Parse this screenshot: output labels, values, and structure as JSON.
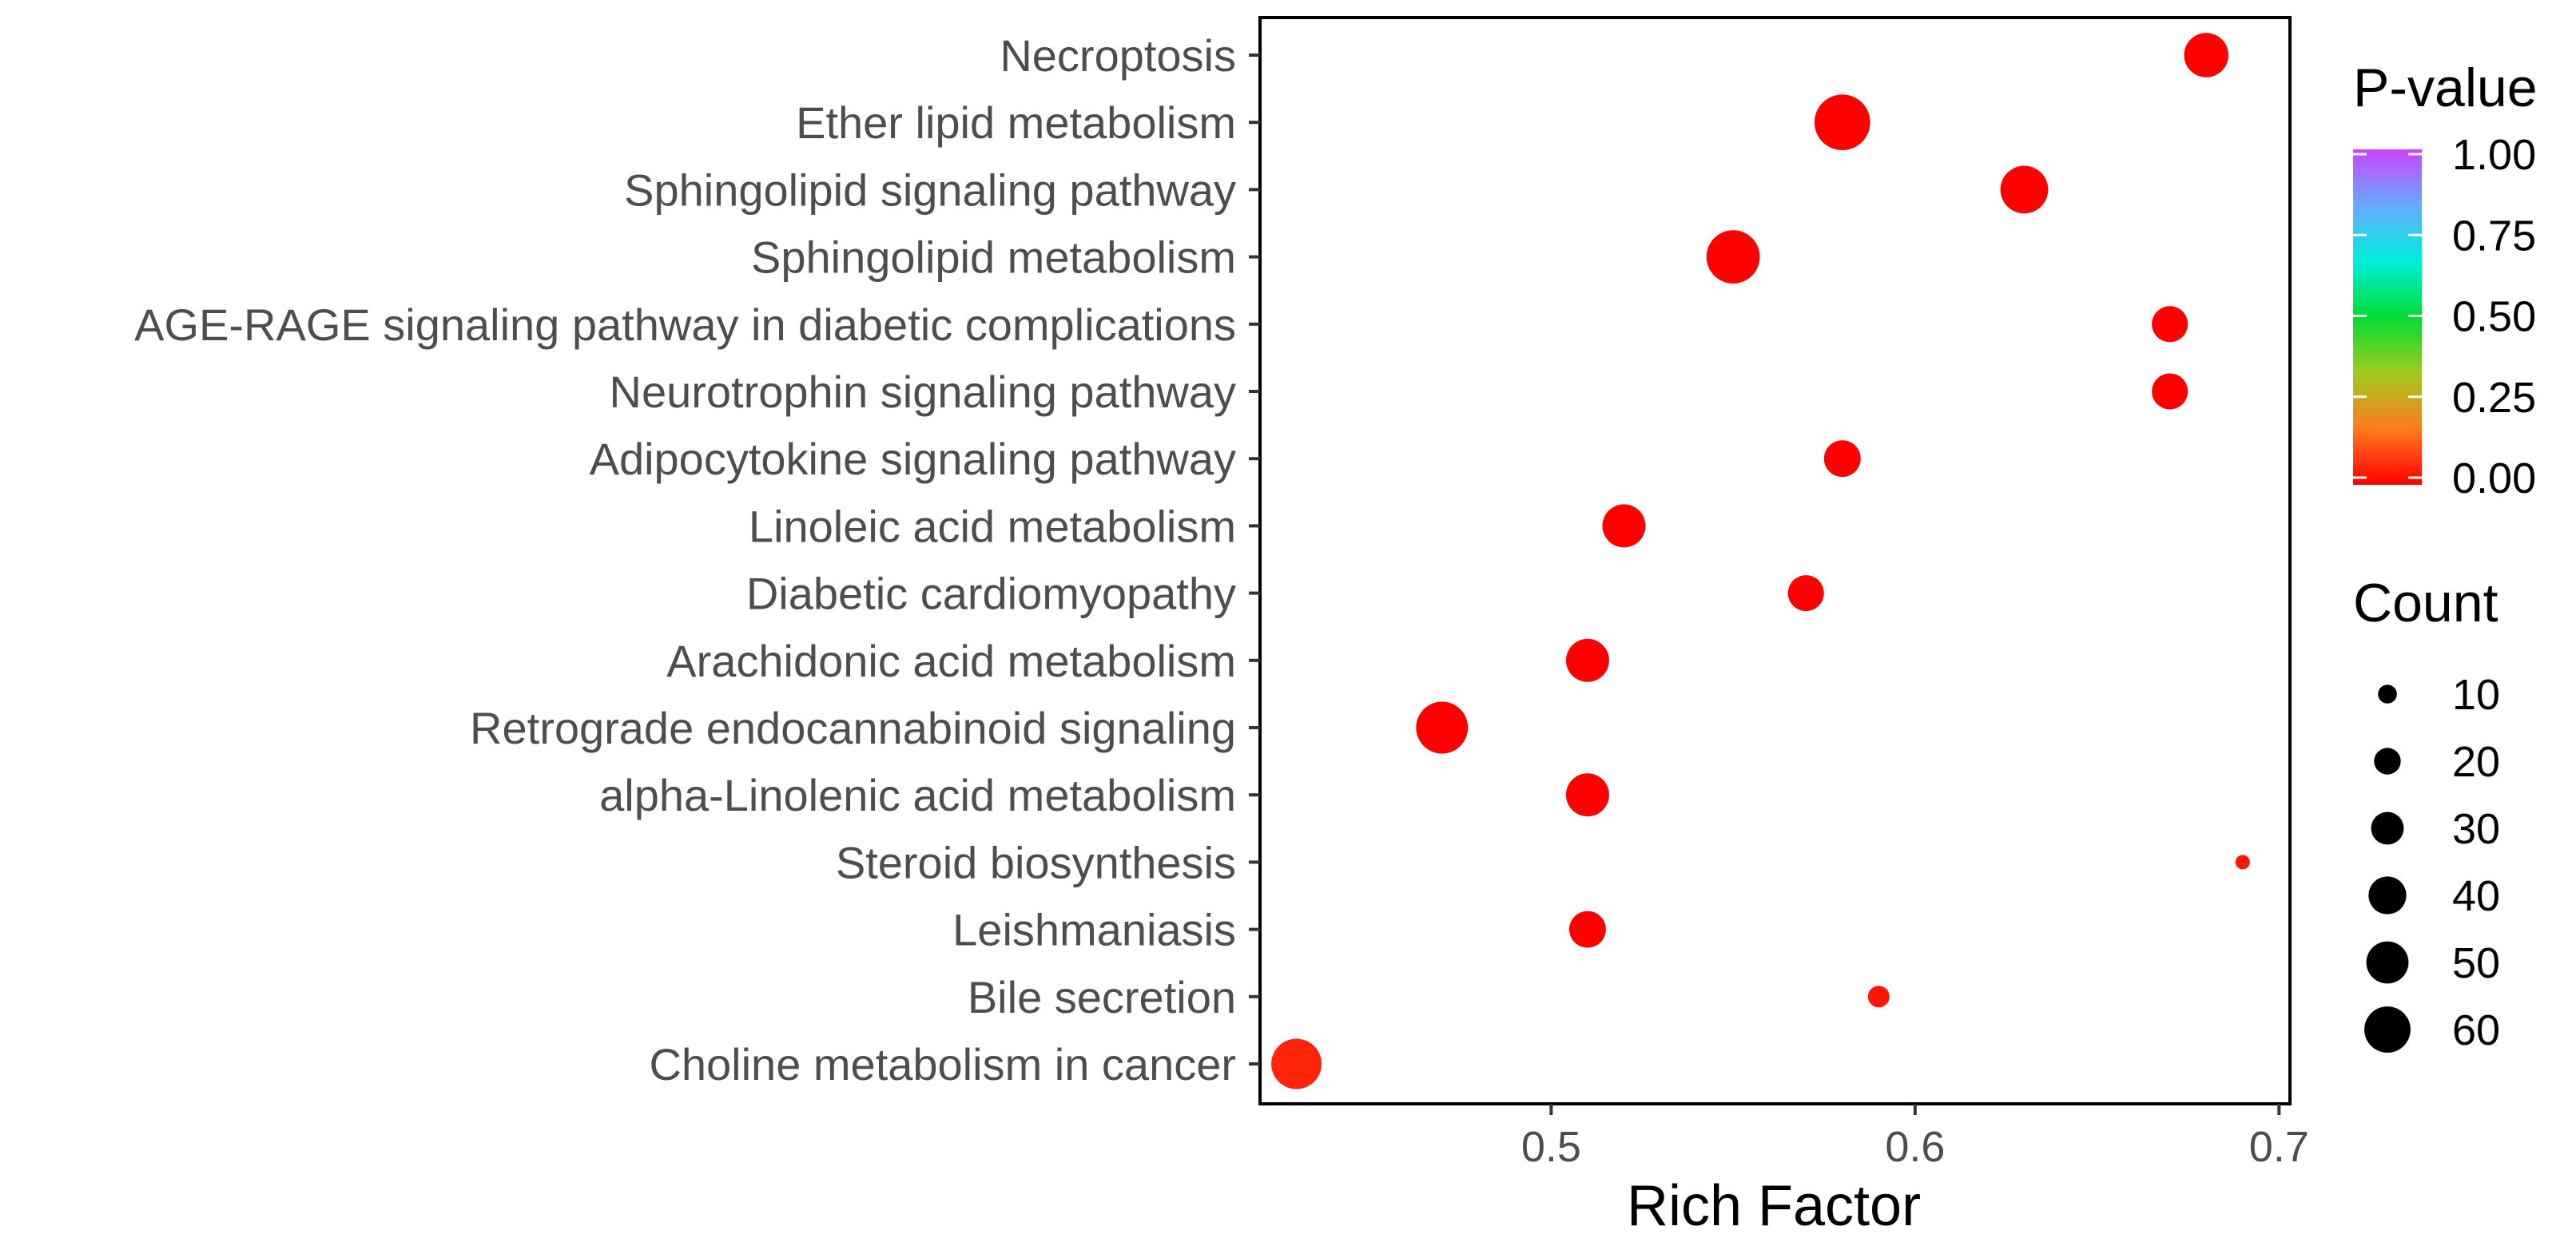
{
  "chart_data": {
    "type": "scatter",
    "title": "",
    "xlabel": "Rich Factor",
    "ylabel": "",
    "xlim": [
      0.42,
      0.703
    ],
    "xticks": [
      0.5,
      0.6,
      0.7
    ],
    "xtick_labels": [
      "0.5",
      "0.6",
      "0.7"
    ],
    "points": [
      {
        "term": "Necroptosis",
        "rich_factor": 0.68,
        "count": 38,
        "pvalue": 0.0
      },
      {
        "term": "Ether lipid metabolism",
        "rich_factor": 0.58,
        "count": 60,
        "pvalue": 0.0
      },
      {
        "term": "Sphingolipid signaling pathway",
        "rich_factor": 0.63,
        "count": 44,
        "pvalue": 0.0
      },
      {
        "term": "Sphingolipid metabolism",
        "rich_factor": 0.55,
        "count": 55,
        "pvalue": 0.0
      },
      {
        "term": "AGE-RAGE signaling pathway in diabetic complications",
        "rich_factor": 0.67,
        "count": 25,
        "pvalue": 0.0
      },
      {
        "term": "Neurotrophin signaling pathway",
        "rich_factor": 0.67,
        "count": 25,
        "pvalue": 0.0
      },
      {
        "term": "Adipocytokine signaling pathway",
        "rich_factor": 0.58,
        "count": 26,
        "pvalue": 0.0
      },
      {
        "term": "Linoleic acid metabolism",
        "rich_factor": 0.52,
        "count": 36,
        "pvalue": 0.0
      },
      {
        "term": "Diabetic cardiomyopathy",
        "rich_factor": 0.57,
        "count": 25,
        "pvalue": 0.0
      },
      {
        "term": "Arachidonic acid metabolism",
        "rich_factor": 0.51,
        "count": 36,
        "pvalue": 0.0
      },
      {
        "term": "Retrograde endocannabinoid signaling",
        "rich_factor": 0.47,
        "count": 52,
        "pvalue": 0.0
      },
      {
        "term": "alpha-Linolenic acid metabolism",
        "rich_factor": 0.51,
        "count": 36,
        "pvalue": 0.0
      },
      {
        "term": "Steroid biosynthesis",
        "rich_factor": 0.69,
        "count": 4,
        "pvalue": 0.03
      },
      {
        "term": "Leishmaniasis",
        "rich_factor": 0.51,
        "count": 26,
        "pvalue": 0.0
      },
      {
        "term": "Bile secretion",
        "rich_factor": 0.59,
        "count": 9,
        "pvalue": 0.03
      },
      {
        "term": "Choline metabolism in cancer",
        "rich_factor": 0.43,
        "count": 49,
        "pvalue": 0.05
      }
    ],
    "color_legend": {
      "title": "P-value",
      "ticks": [
        1.0,
        0.75,
        0.5,
        0.25,
        0.0
      ],
      "tick_labels": [
        "1.00",
        "0.75",
        "0.50",
        "0.25",
        "0.00"
      ],
      "gradient": [
        "#ff0000",
        "#ff7a1f",
        "#9fcc1e",
        "#00dd33",
        "#00eedd",
        "#66aaff",
        "#cc44ff"
      ]
    },
    "size_legend": {
      "title": "Count",
      "values": [
        10,
        20,
        30,
        40,
        50,
        60
      ],
      "labels": [
        "10",
        "20",
        "30",
        "40",
        "50",
        "60"
      ]
    },
    "colors": {
      "panel_border": "#000000",
      "tick_text": "#4d4d4d",
      "legend_dot": "#000000"
    }
  }
}
